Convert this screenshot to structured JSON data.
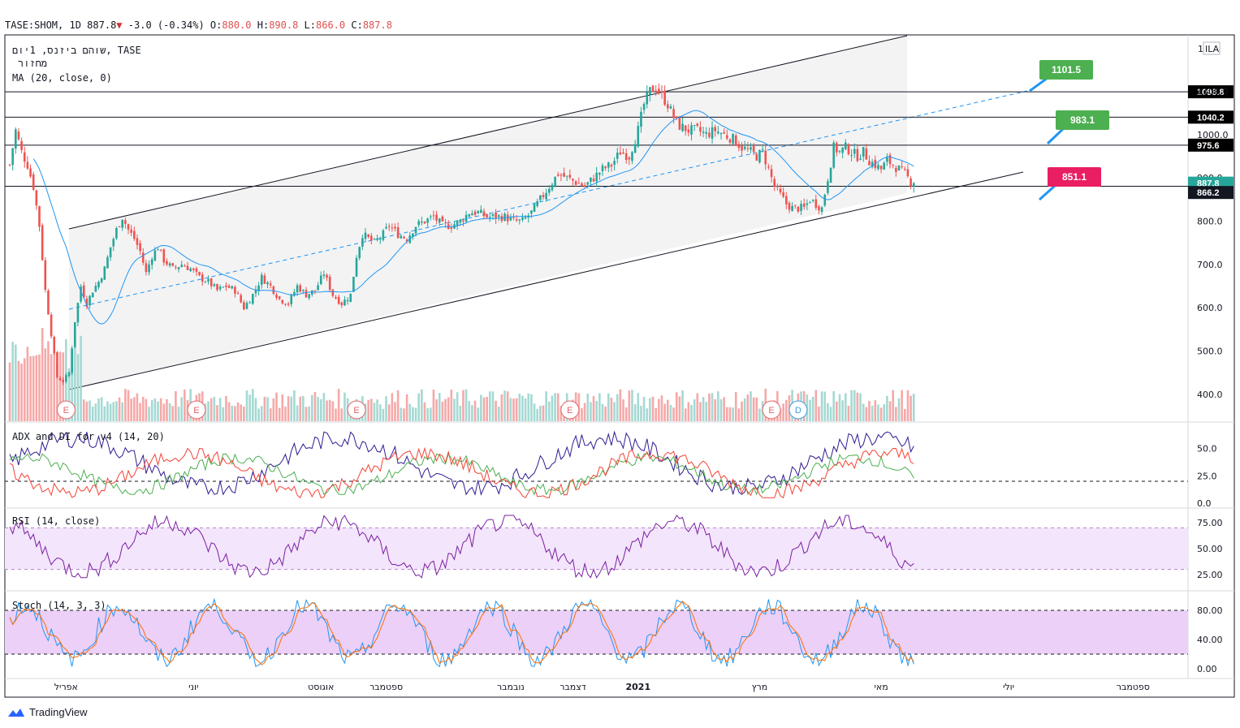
{
  "header": {
    "symbol": "TASE:SHOM,",
    "interval": "1D",
    "last": "887.8",
    "change": "-3.0 (-0.34%)",
    "o_label": "O:",
    "o": "880.0",
    "h_label": "H:",
    "h": "890.8",
    "l_label": "L:",
    "l": "866.0",
    "c_label": "C:",
    "c": "887.8"
  },
  "panes": {
    "main_legend": [
      "שוהם ביזנס, 1יום, TASE",
      "מחזור",
      "MA (20, close, 0)"
    ],
    "adx_legend": "ADX and DI for v4 (14, 20)",
    "rsi_legend": "RSI (14, close)",
    "stoch_legend": "Stoch (14, 3, 3)",
    "currency": "ILA",
    "currency_count": "1"
  },
  "x_labels": [
    {
      "label": "אפריל",
      "i": 19
    },
    {
      "label": "יוני",
      "i": 62
    },
    {
      "label": "אוגוסט",
      "i": 105
    },
    {
      "label": "ספטמבר",
      "i": 127
    },
    {
      "label": "נובמבר",
      "i": 169
    },
    {
      "label": "דצמבר",
      "i": 190
    },
    {
      "label": "2021",
      "i": 212
    },
    {
      "label": "מרץ",
      "i": 253
    },
    {
      "label": "מאי",
      "i": 294
    },
    {
      "label": "יולי",
      "i": 337
    },
    {
      "label": "ספטמבר",
      "i": 379
    }
  ],
  "events": [
    {
      "label": "E",
      "i": 19,
      "color": "#e0676c"
    },
    {
      "label": "E",
      "i": 63,
      "color": "#e0676c"
    },
    {
      "label": "E",
      "i": 117,
      "color": "#e0676c"
    },
    {
      "label": "E",
      "i": 189,
      "color": "#e0676c"
    },
    {
      "label": "E",
      "i": 257,
      "color": "#e0676c"
    },
    {
      "label": "D",
      "i": 266,
      "color": "#3d9fe0"
    }
  ],
  "price_axis": {
    "ticks": [
      400,
      500,
      600,
      700,
      800,
      900,
      1000,
      1100
    ]
  },
  "horizontal_levels": [
    {
      "value": 1098.8,
      "label": "1098.8"
    },
    {
      "value": 1040.2,
      "label": "1040.2"
    },
    {
      "value": 975.6,
      "label": "975.6"
    },
    {
      "value": 880.5,
      "label": "880.5"
    }
  ],
  "price_labels": [
    {
      "value": 887.8,
      "label": "887.8",
      "color": "#26a69a"
    },
    {
      "value": 866.2,
      "label": "866.2",
      "color": "#131722"
    }
  ],
  "callouts": [
    {
      "label": "1101.5",
      "value": 1101.5,
      "color": "#4caf50"
    },
    {
      "label": "983.1",
      "value": 983.1,
      "color": "#4caf50"
    },
    {
      "label": "851.1",
      "value": 851.1,
      "color": "#e91e63"
    }
  ],
  "colors": {
    "up": "#26a69a",
    "down": "#ef5350",
    "ma": "#2196f3",
    "adx": "#311b92",
    "di_plus": "#4caf50",
    "di_minus": "#f44336",
    "rsi": "#7b1fa2",
    "stoch_k": "#2196f3",
    "stoch_d": "#ff6d00"
  },
  "adx_axis": {
    "ticks": [
      0,
      25,
      50
    ],
    "level": 20
  },
  "rsi_axis": {
    "ticks": [
      25,
      50,
      75
    ],
    "upper": 70,
    "lower": 30
  },
  "stoch_axis": {
    "ticks": [
      0,
      40,
      80
    ],
    "upper": 80,
    "lower": 20
  },
  "chart_data": {
    "type": "candlestick",
    "symbol": "TASE:SHOM",
    "anchors": [
      [
        0,
        930
      ],
      [
        2,
        1010
      ],
      [
        4,
        960
      ],
      [
        6,
        930
      ],
      [
        8,
        880
      ],
      [
        10,
        790
      ],
      [
        12,
        640
      ],
      [
        14,
        540
      ],
      [
        16,
        440
      ],
      [
        18,
        430
      ],
      [
        20,
        450
      ],
      [
        22,
        570
      ],
      [
        24,
        650
      ],
      [
        26,
        610
      ],
      [
        28,
        640
      ],
      [
        30,
        660
      ],
      [
        32,
        690
      ],
      [
        34,
        740
      ],
      [
        36,
        780
      ],
      [
        38,
        810
      ],
      [
        40,
        780
      ],
      [
        42,
        760
      ],
      [
        44,
        730
      ],
      [
        46,
        680
      ],
      [
        48,
        720
      ],
      [
        50,
        740
      ],
      [
        52,
        710
      ],
      [
        55,
        690
      ],
      [
        58,
        700
      ],
      [
        61,
        690
      ],
      [
        64,
        670
      ],
      [
        67,
        660
      ],
      [
        70,
        640
      ],
      [
        73,
        650
      ],
      [
        76,
        640
      ],
      [
        79,
        600
      ],
      [
        82,
        630
      ],
      [
        85,
        670
      ],
      [
        88,
        650
      ],
      [
        91,
        620
      ],
      [
        94,
        610
      ],
      [
        97,
        650
      ],
      [
        100,
        630
      ],
      [
        103,
        640
      ],
      [
        106,
        680
      ],
      [
        109,
        630
      ],
      [
        112,
        610
      ],
      [
        115,
        630
      ],
      [
        117,
        720
      ],
      [
        119,
        770
      ],
      [
        121,
        760
      ],
      [
        123,
        750
      ],
      [
        126,
        770
      ],
      [
        128,
        790
      ],
      [
        131,
        770
      ],
      [
        134,
        760
      ],
      [
        137,
        790
      ],
      [
        140,
        800
      ],
      [
        143,
        810
      ],
      [
        146,
        790
      ],
      [
        149,
        790
      ],
      [
        152,
        800
      ],
      [
        155,
        820
      ],
      [
        158,
        820
      ],
      [
        161,
        810
      ],
      [
        164,
        810
      ],
      [
        167,
        810
      ],
      [
        170,
        800
      ],
      [
        173,
        800
      ],
      [
        176,
        820
      ],
      [
        179,
        850
      ],
      [
        182,
        880
      ],
      [
        185,
        910
      ],
      [
        188,
        900
      ],
      [
        191,
        890
      ],
      [
        194,
        880
      ],
      [
        197,
        900
      ],
      [
        200,
        920
      ],
      [
        203,
        930
      ],
      [
        206,
        960
      ],
      [
        209,
        950
      ],
      [
        212,
        1010
      ],
      [
        214,
        1070
      ],
      [
        216,
        1100
      ],
      [
        218,
        1110
      ],
      [
        220,
        1090
      ],
      [
        222,
        1070
      ],
      [
        224,
        1040
      ],
      [
        226,
        1020
      ],
      [
        229,
        1010
      ],
      [
        232,
        1010
      ],
      [
        235,
        1000
      ],
      [
        238,
        1010
      ],
      [
        241,
        1000
      ],
      [
        244,
        990
      ],
      [
        247,
        970
      ],
      [
        250,
        960
      ],
      [
        252,
        950
      ],
      [
        254,
        960
      ],
      [
        256,
        920
      ],
      [
        258,
        880
      ],
      [
        260,
        860
      ],
      [
        262,
        840
      ],
      [
        264,
        830
      ],
      [
        266,
        830
      ],
      [
        268,
        830
      ],
      [
        270,
        850
      ],
      [
        272,
        840
      ],
      [
        274,
        830
      ],
      [
        276,
        900
      ],
      [
        278,
        970
      ],
      [
        280,
        960
      ],
      [
        282,
        970
      ],
      [
        284,
        960
      ],
      [
        286,
        950
      ],
      [
        288,
        960
      ],
      [
        290,
        940
      ],
      [
        292,
        930
      ],
      [
        294,
        920
      ],
      [
        296,
        940
      ],
      [
        298,
        930
      ],
      [
        300,
        920
      ],
      [
        302,
        910
      ],
      [
        304,
        890
      ],
      [
        305,
        887.8
      ]
    ],
    "last_bar": {
      "open": 880.0,
      "high": 890.8,
      "low": 866.0,
      "close": 887.8
    },
    "moving_average": {
      "period": 20,
      "source": "close"
    },
    "ylim": [
      360,
      1150
    ]
  }
}
